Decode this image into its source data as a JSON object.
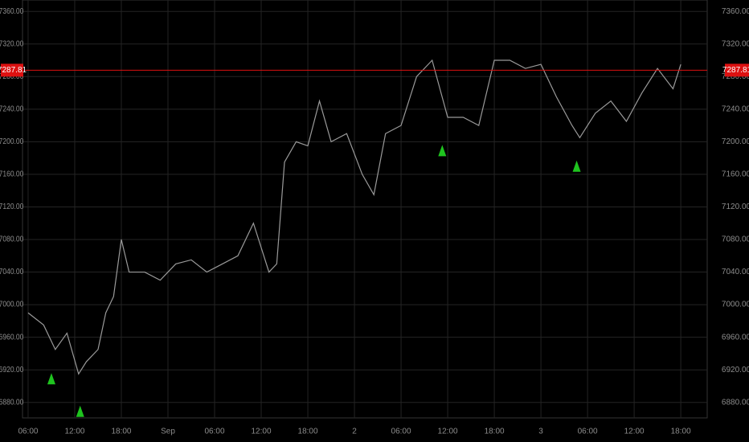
{
  "chart_data": {
    "type": "line",
    "xlim": [
      -0.72,
      87.4
    ],
    "ylim": [
      6861,
      7374
    ],
    "xticks": [
      {
        "value": 0,
        "label": "06:00"
      },
      {
        "value": 6,
        "label": "12:00"
      },
      {
        "value": 12,
        "label": "18:00"
      },
      {
        "value": 18,
        "label": "Sep"
      },
      {
        "value": 24,
        "label": "06:00"
      },
      {
        "value": 30,
        "label": "12:00"
      },
      {
        "value": 36,
        "label": "18:00"
      },
      {
        "value": 42,
        "label": "2"
      },
      {
        "value": 48,
        "label": "06:00"
      },
      {
        "value": 54,
        "label": "12:00"
      },
      {
        "value": 60,
        "label": "18:00"
      },
      {
        "value": 66,
        "label": "3"
      },
      {
        "value": 72,
        "label": "06:00"
      },
      {
        "value": 78,
        "label": "12:00"
      },
      {
        "value": 84,
        "label": "18:00"
      }
    ],
    "yticks": [
      {
        "value": 6880,
        "label": "6880.00"
      },
      {
        "value": 6920,
        "label": "6920.00"
      },
      {
        "value": 6960,
        "label": "6960.00"
      },
      {
        "value": 7000,
        "label": "7000.00"
      },
      {
        "value": 7040,
        "label": "7040.00"
      },
      {
        "value": 7080,
        "label": "7080.00"
      },
      {
        "value": 7120,
        "label": "7120.00"
      },
      {
        "value": 7160,
        "label": "7160.00"
      },
      {
        "value": 7200,
        "label": "7200.00"
      },
      {
        "value": 7240,
        "label": "7240.00"
      },
      {
        "value": 7280,
        "label": "7280.00"
      },
      {
        "value": 7320,
        "label": "7320.00"
      },
      {
        "value": 7360,
        "label": "7360.00"
      }
    ],
    "grid": true,
    "series": [
      {
        "color": "#9a9a9a",
        "x": [
          0,
          2,
          3.5,
          5,
          6.5,
          7.5,
          9,
          10,
          11,
          12,
          13,
          15,
          17,
          19,
          21,
          23,
          25,
          27,
          29,
          31,
          32,
          33,
          34.5,
          36,
          37.5,
          39,
          41,
          43,
          44.5,
          46,
          48,
          50,
          52,
          54,
          56,
          58,
          60,
          62,
          64,
          66,
          68,
          70,
          71,
          73,
          75,
          77,
          79,
          81,
          83,
          84
        ],
        "values": [
          6990,
          6975,
          6945,
          6965,
          6915,
          6930,
          6945,
          6990,
          7010,
          7080,
          7040,
          7040,
          7030,
          7050,
          7055,
          7040,
          7050,
          7060,
          7100,
          7040,
          7050,
          7175,
          7200,
          7195,
          7250,
          7200,
          7210,
          7160,
          7135,
          7210,
          7220,
          7280,
          7300,
          7230,
          7230,
          7220,
          7300,
          7300,
          7290,
          7295,
          7255,
          7220,
          7205,
          7235,
          7250,
          7225,
          7260,
          7290,
          7265,
          7295
        ]
      }
    ],
    "markers": {
      "color": "#1fc41f",
      "x": [
        3,
        6.7,
        53.3,
        70.6
      ],
      "values": [
        6916,
        6876,
        7196,
        7177
      ]
    },
    "price_line": {
      "color": "#d11",
      "value": 7287.81
    }
  }
}
